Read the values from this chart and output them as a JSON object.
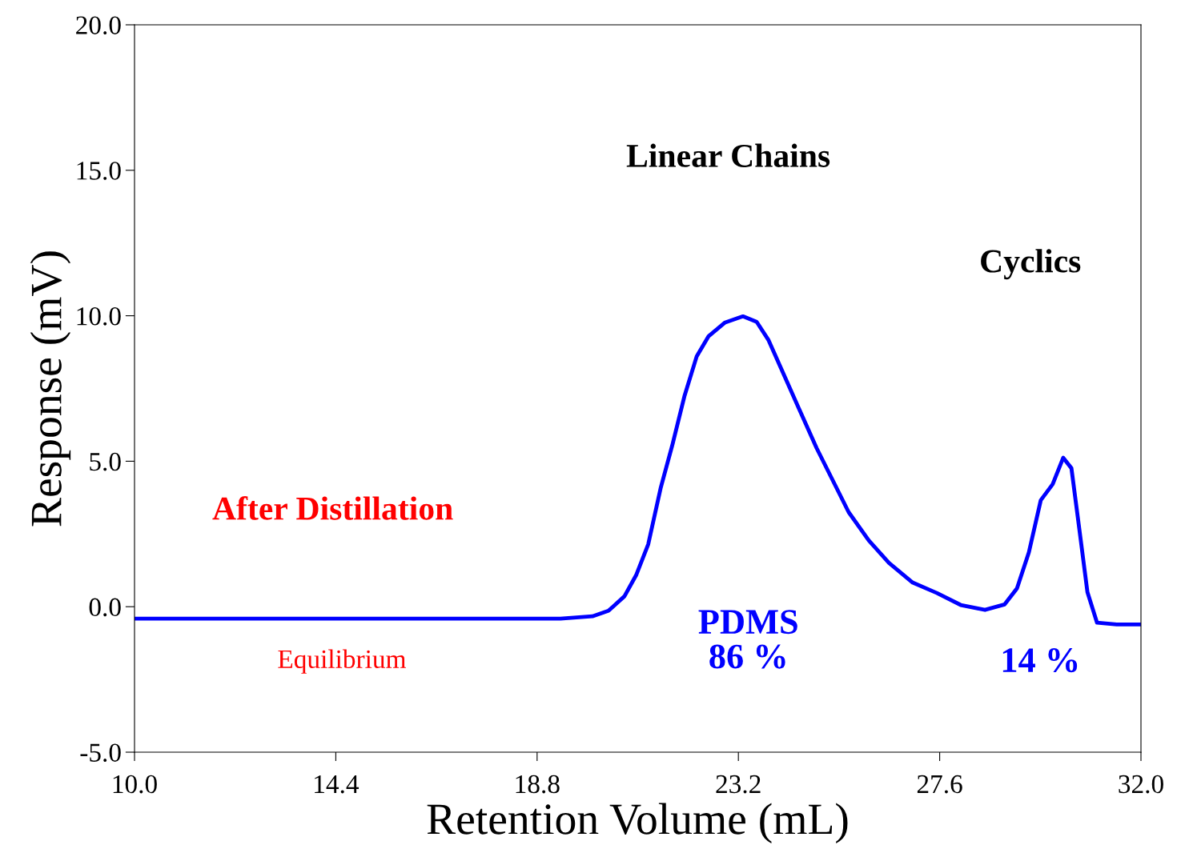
{
  "chart_data": {
    "type": "line",
    "xlabel": "Retention Volume (mL)",
    "ylabel": "Response (mV)",
    "x": [
      10.0,
      19.31,
      20.01,
      20.36,
      20.71,
      20.97,
      21.23,
      21.5,
      21.76,
      22.02,
      22.29,
      22.55,
      22.9,
      23.3,
      23.6,
      23.86,
      24.21,
      24.56,
      24.91,
      25.26,
      25.61,
      26.05,
      26.49,
      27.01,
      27.54,
      28.06,
      28.59,
      29.02,
      29.29,
      29.55,
      29.81,
      30.07,
      30.3,
      30.48,
      30.65,
      30.83,
      31.04,
      31.47,
      32.0
    ],
    "series": [
      {
        "color": "#0000ff",
        "values": [
          -0.41,
          -0.41,
          -0.33,
          -0.14,
          0.36,
          1.1,
          2.15,
          4.07,
          5.58,
          7.23,
          8.61,
          9.3,
          9.76,
          9.98,
          9.79,
          9.16,
          7.92,
          6.68,
          5.45,
          4.35,
          3.25,
          2.28,
          1.51,
          0.83,
          0.47,
          0.06,
          -0.11,
          0.08,
          0.63,
          1.87,
          3.66,
          4.21,
          5.12,
          4.76,
          2.7,
          0.5,
          -0.55,
          -0.61,
          -0.61
        ]
      }
    ],
    "xlim": [
      10.0,
      32.0
    ],
    "xticks": [
      {
        "value": 10.0,
        "label": "10.0"
      },
      {
        "value": 14.4,
        "label": "14.4"
      },
      {
        "value": 18.8,
        "label": "18.8"
      },
      {
        "value": 23.2,
        "label": "23.2"
      },
      {
        "value": 27.6,
        "label": "27.6"
      },
      {
        "value": 32.0,
        "label": "32.0"
      }
    ],
    "ylim": [
      -5.0,
      20.0
    ],
    "yticks": [
      {
        "value": -5.0,
        "label": "-5.0"
      },
      {
        "value": 0.0,
        "label": "0.0"
      },
      {
        "value": 5.0,
        "label": "5.0"
      },
      {
        "value": 10.0,
        "label": "10.0"
      },
      {
        "value": 15.0,
        "label": "15.0"
      },
      {
        "value": 20.0,
        "label": "20.0"
      }
    ],
    "grid": false,
    "legend": false,
    "marker": "none",
    "line_style": "solid",
    "annotations": [
      "Linear Chains",
      "Cyclics",
      "After Distillation",
      "Equilibrium",
      "PDMS\n86 %",
      "14 %"
    ]
  }
}
